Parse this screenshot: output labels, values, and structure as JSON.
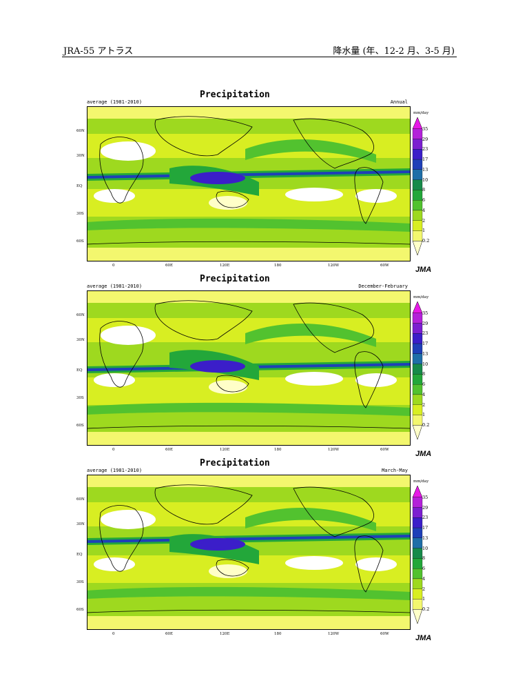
{
  "header": {
    "left": "JRA-55 アトラス",
    "right": "降水量 (年、12-2 月、3-5 月)"
  },
  "map_common": {
    "title": "Precipitation",
    "period": "average (1981-2010)",
    "units": "mm/day",
    "lat_labels": [
      "60N",
      "30N",
      "EQ",
      "30S",
      "60S"
    ],
    "lon_labels": [
      "0",
      "60E",
      "120E",
      "180",
      "120W",
      "60W"
    ],
    "colorbar_ticks": [
      "35",
      "29",
      "23",
      "17",
      "13",
      "10",
      "8",
      "6",
      "4",
      "2",
      "1",
      "0.2"
    ],
    "colorbar_colors": [
      "#e619e6",
      "#b322d9",
      "#7b1fd0",
      "#3b1ec9",
      "#1f3fb8",
      "#1f6ea8",
      "#178a4a",
      "#23a73a",
      "#52c22f",
      "#9ed91f",
      "#d8ee22",
      "#f3f76e",
      "#ffffc8"
    ],
    "logo": "JMA"
  },
  "panels": [
    {
      "season": "Annual"
    },
    {
      "season": "December-February"
    },
    {
      "season": "March-May"
    }
  ]
}
